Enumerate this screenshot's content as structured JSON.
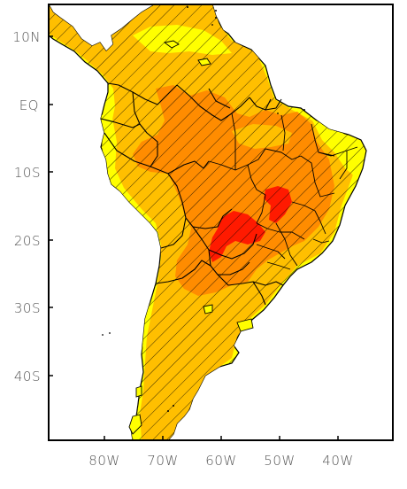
{
  "map": {
    "lat_labels": [
      "10N",
      "EQ",
      "10S",
      "20S",
      "30S",
      "40S"
    ],
    "lon_labels": [
      "80W",
      "70W",
      "60W",
      "50W",
      "40W"
    ],
    "colors": {
      "ocean": "#ffffff",
      "low": "#ffff00",
      "mid": "#ffbf00",
      "high": "#ff8c00",
      "peak": "#ff1a00",
      "hatch": "#000000",
      "border": "#000000"
    }
  }
}
